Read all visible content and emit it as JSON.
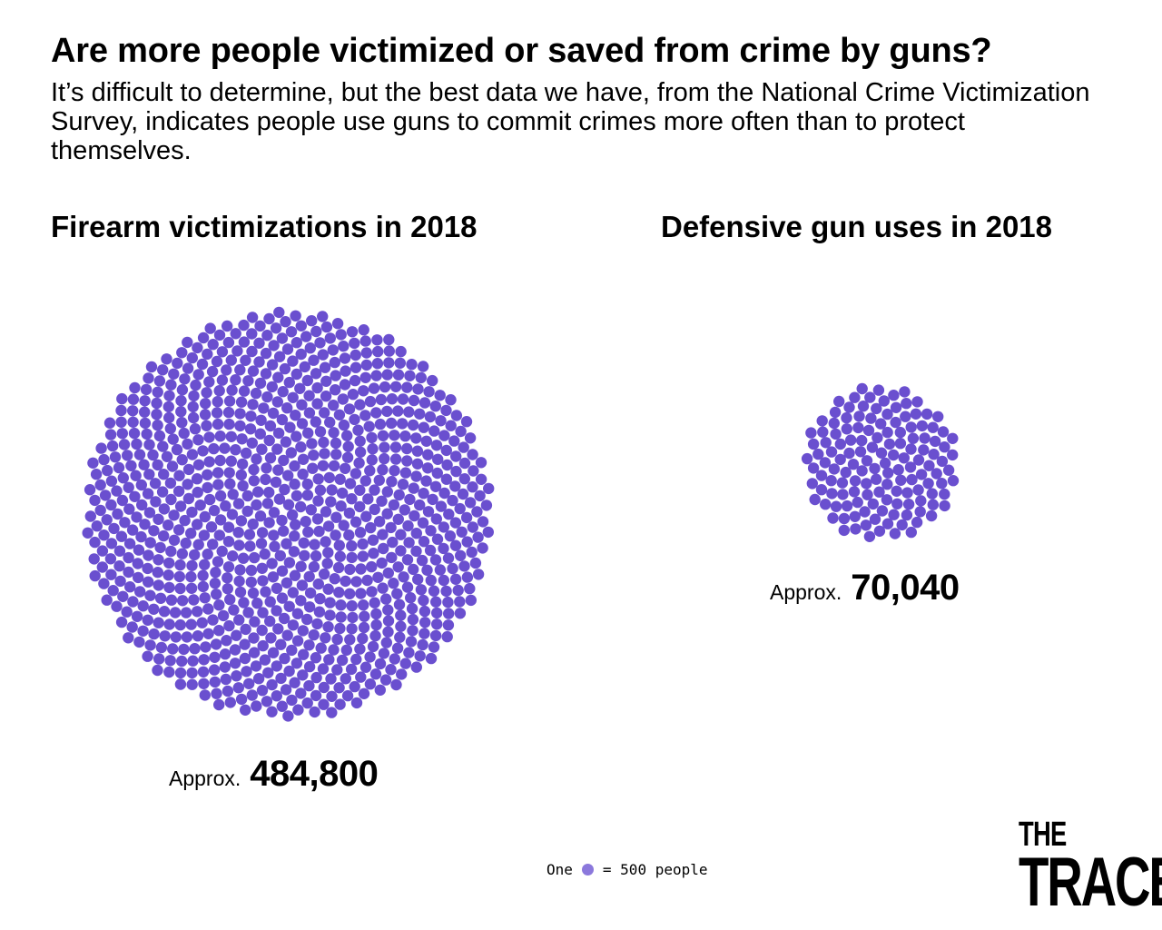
{
  "header": {
    "title": "Are more people victimized or saved from crime by guns?",
    "subtitle": "It’s difficult to determine, but the best data we have, from the National Crime Victimization Survey, indicates people use guns to commit crimes more often than to protect themselves."
  },
  "colors": {
    "dot": "#6a4fcf",
    "legend_dot": "#8b78dc"
  },
  "chart_data": {
    "type": "packed-dot",
    "unit_people_per_dot": 500,
    "series": [
      {
        "name": "Firearm victimizations in 2018",
        "value": 484800,
        "dots": 970,
        "prefix": "Approx.",
        "label": "484,800"
      },
      {
        "name": "Defensive gun uses in 2018",
        "value": 70040,
        "dots": 140,
        "prefix": "Approx.",
        "label": "70,040"
      }
    ]
  },
  "legend": {
    "one": "One",
    "equals": "= 500 people"
  },
  "logo": {
    "line1": "THE",
    "line2": "TRACE"
  }
}
